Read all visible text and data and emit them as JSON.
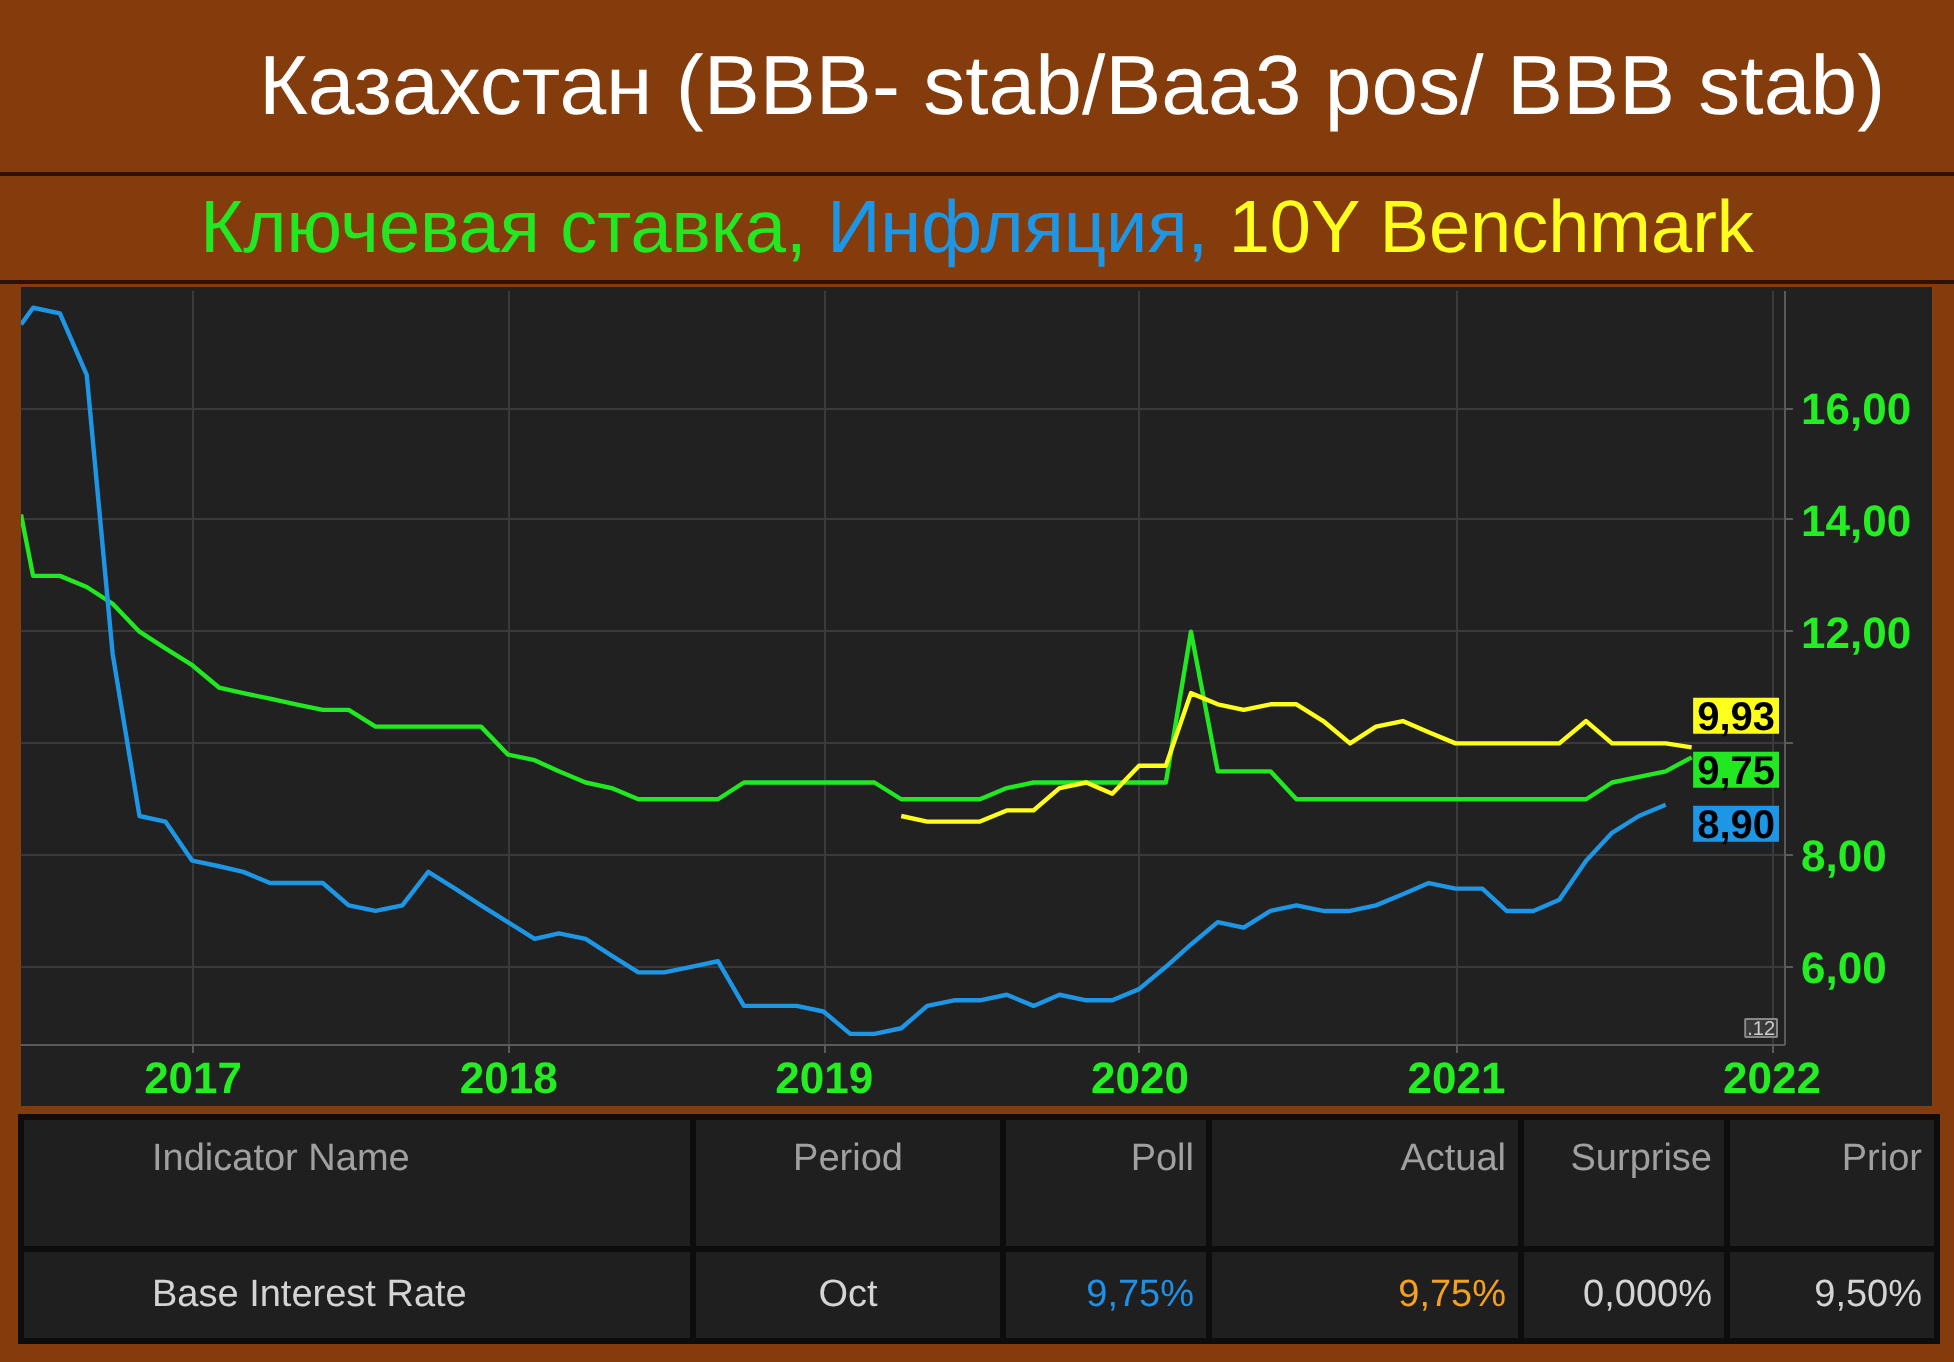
{
  "chart_data": [
    {
      "type": "line",
      "title": "Казахстан (BBB- stab/Baa3 pos/ BBB stab)",
      "legend": "top",
      "grid": true,
      "xlim": [
        "2016-06-16",
        "2022-01-16"
      ],
      "xticks": [
        "2017",
        "2018",
        "2019",
        "2020",
        "2021",
        "2022"
      ],
      "ylim": [
        4.6,
        18.1
      ],
      "yticks": [
        {
          "value": 6,
          "label": "6,00"
        },
        {
          "value": 8,
          "label": "8,00"
        },
        {
          "value": 10,
          "label": null
        },
        {
          "value": 12,
          "label": "12,00"
        },
        {
          "value": 14,
          "label": "14,00"
        },
        {
          "value": 16,
          "label": "16,00"
        }
      ],
      "annotations": [
        ".12"
      ],
      "series": [
        {
          "name": "Ключевая ставка,",
          "color": "#22e822",
          "x": [
            "2016-06-16",
            "2016-06-30",
            "2016-07-31",
            "2016-08-31",
            "2016-09-30",
            "2016-10-31",
            "2016-11-30",
            "2016-12-31",
            "2017-01-31",
            "2017-02-28",
            "2017-03-31",
            "2017-04-30",
            "2017-05-31",
            "2017-06-30",
            "2017-07-31",
            "2017-08-31",
            "2017-09-30",
            "2017-10-31",
            "2017-11-30",
            "2017-12-31",
            "2018-01-31",
            "2018-02-28",
            "2018-03-31",
            "2018-04-30",
            "2018-05-31",
            "2018-06-30",
            "2018-07-31",
            "2018-08-31",
            "2018-09-30",
            "2018-10-31",
            "2018-11-30",
            "2018-12-31",
            "2019-01-31",
            "2019-02-28",
            "2019-03-31",
            "2019-04-30",
            "2019-05-31",
            "2019-06-30",
            "2019-07-31",
            "2019-08-31",
            "2019-09-30",
            "2019-10-31",
            "2019-11-30",
            "2019-12-31",
            "2020-01-31",
            "2020-02-29",
            "2020-03-31",
            "2020-04-30",
            "2020-05-31",
            "2020-06-30",
            "2020-07-31",
            "2020-08-31",
            "2020-09-30",
            "2020-10-31",
            "2020-11-30",
            "2020-12-31",
            "2021-01-31",
            "2021-02-28",
            "2021-03-31",
            "2021-04-30",
            "2021-05-31",
            "2021-06-30",
            "2021-07-31",
            "2021-08-31",
            "2021-09-30"
          ],
          "values": [
            14.1,
            13.0,
            13.0,
            12.8,
            12.5,
            12.0,
            11.7,
            11.4,
            11.0,
            10.9,
            10.8,
            10.7,
            10.6,
            10.6,
            10.3,
            10.3,
            10.3,
            10.3,
            10.3,
            9.8,
            9.7,
            9.5,
            9.3,
            9.2,
            9.0,
            9.0,
            9.0,
            9.0,
            9.3,
            9.3,
            9.3,
            9.3,
            9.3,
            9.3,
            9.0,
            9.0,
            9.0,
            9.0,
            9.2,
            9.3,
            9.3,
            9.3,
            9.3,
            9.3,
            9.3,
            12.0,
            9.5,
            9.5,
            9.5,
            9.0,
            9.0,
            9.0,
            9.0,
            9.0,
            9.0,
            9.0,
            9.0,
            9.0,
            9.0,
            9.0,
            9.0,
            9.3,
            9.4,
            9.5,
            9.75
          ],
          "value_labels": [
            null,
            null,
            null,
            null,
            null,
            null,
            null,
            null,
            null,
            null,
            null,
            null,
            null,
            null,
            null,
            null,
            null,
            null,
            null,
            null,
            null,
            null,
            null,
            null,
            null,
            null,
            null,
            null,
            null,
            null,
            null,
            null,
            null,
            null,
            null,
            null,
            null,
            null,
            null,
            null,
            null,
            null,
            null,
            null,
            null,
            null,
            null,
            null,
            null,
            null,
            null,
            null,
            null,
            null,
            null,
            null,
            null,
            null,
            null,
            null,
            null,
            null,
            null,
            null,
            "9,75"
          ]
        },
        {
          "name": "Инфляция,",
          "color": "#1e96e6",
          "x": [
            "2016-06-16",
            "2016-06-30",
            "2016-07-31",
            "2016-08-31",
            "2016-09-30",
            "2016-10-31",
            "2016-11-30",
            "2016-12-31",
            "2017-01-31",
            "2017-02-28",
            "2017-03-31",
            "2017-04-30",
            "2017-05-31",
            "2017-06-30",
            "2017-07-31",
            "2017-08-31",
            "2017-09-30",
            "2017-10-31",
            "2017-11-30",
            "2017-12-31",
            "2018-01-31",
            "2018-02-28",
            "2018-03-31",
            "2018-04-30",
            "2018-05-31",
            "2018-06-30",
            "2018-07-31",
            "2018-08-31",
            "2018-09-30",
            "2018-10-31",
            "2018-11-30",
            "2018-12-31",
            "2019-01-31",
            "2019-02-28",
            "2019-03-31",
            "2019-04-30",
            "2019-05-31",
            "2019-06-30",
            "2019-07-31",
            "2019-08-31",
            "2019-09-30",
            "2019-10-31",
            "2019-11-30",
            "2019-12-31",
            "2020-01-31",
            "2020-02-29",
            "2020-03-31",
            "2020-04-30",
            "2020-05-31",
            "2020-06-30",
            "2020-07-31",
            "2020-08-31",
            "2020-09-30",
            "2020-10-31",
            "2020-11-30",
            "2020-12-31",
            "2021-01-31",
            "2021-02-28",
            "2021-03-31",
            "2021-04-30",
            "2021-05-31",
            "2021-06-30",
            "2021-07-31",
            "2021-08-31"
          ],
          "values": [
            17.5,
            17.8,
            17.7,
            16.6,
            11.6,
            8.7,
            8.6,
            7.9,
            7.8,
            7.7,
            7.5,
            7.5,
            7.5,
            7.1,
            7.0,
            7.1,
            7.7,
            7.4,
            7.1,
            6.8,
            6.5,
            6.6,
            6.5,
            6.2,
            5.9,
            5.9,
            6.0,
            6.1,
            5.3,
            5.3,
            5.3,
            5.2,
            4.8,
            4.8,
            4.9,
            5.3,
            5.4,
            5.4,
            5.5,
            5.3,
            5.5,
            5.4,
            5.4,
            5.6,
            6.0,
            6.4,
            6.8,
            6.7,
            7.0,
            7.1,
            7.0,
            7.0,
            7.1,
            7.3,
            7.5,
            7.4,
            7.4,
            7.0,
            7.0,
            7.2,
            7.9,
            8.4,
            8.7,
            8.9
          ],
          "value_labels": [
            null,
            null,
            null,
            null,
            null,
            null,
            null,
            null,
            null,
            null,
            null,
            null,
            null,
            null,
            null,
            null,
            null,
            null,
            null,
            null,
            null,
            null,
            null,
            null,
            null,
            null,
            null,
            null,
            null,
            null,
            null,
            null,
            null,
            null,
            null,
            null,
            null,
            null,
            null,
            null,
            null,
            null,
            null,
            null,
            null,
            null,
            null,
            null,
            null,
            null,
            null,
            null,
            null,
            null,
            null,
            null,
            null,
            null,
            null,
            null,
            null,
            null,
            null,
            "8,90"
          ]
        },
        {
          "name": "10Y Benchmark",
          "color": "#ffff1e",
          "x": [
            "2019-03-31",
            "2019-04-30",
            "2019-05-31",
            "2019-06-30",
            "2019-07-31",
            "2019-08-31",
            "2019-09-30",
            "2019-10-31",
            "2019-11-30",
            "2019-12-31",
            "2020-01-31",
            "2020-02-29",
            "2020-03-31",
            "2020-04-30",
            "2020-05-31",
            "2020-06-30",
            "2020-07-31",
            "2020-08-31",
            "2020-09-30",
            "2020-10-31",
            "2020-11-30",
            "2020-12-31",
            "2021-01-31",
            "2021-02-28",
            "2021-03-31",
            "2021-04-30",
            "2021-05-31",
            "2021-06-30",
            "2021-07-31",
            "2021-08-31",
            "2021-09-30"
          ],
          "values": [
            8.7,
            8.6,
            8.6,
            8.6,
            8.8,
            8.8,
            9.2,
            9.3,
            9.1,
            9.6,
            9.6,
            10.9,
            10.7,
            10.6,
            10.7,
            10.7,
            10.4,
            10.0,
            10.3,
            10.4,
            10.2,
            10.0,
            10.0,
            10.0,
            10.0,
            10.0,
            10.4,
            10.0,
            10.0,
            10.0,
            9.93
          ],
          "value_labels": [
            null,
            null,
            null,
            null,
            null,
            null,
            null,
            null,
            null,
            null,
            null,
            null,
            null,
            null,
            null,
            null,
            null,
            null,
            null,
            null,
            null,
            null,
            null,
            null,
            null,
            null,
            null,
            null,
            null,
            null,
            "9,93"
          ]
        }
      ]
    },
    {
      "type": "other",
      "categories": [
        "Indicator Name",
        "Period",
        "Poll",
        "Actual",
        "Surprise",
        "Prior"
      ],
      "cell_labels": [
        [
          "Base Interest Rate",
          "Oct",
          "9,75%",
          "9,75%",
          "0,000%",
          "9,50%"
        ]
      ]
    }
  ]
}
